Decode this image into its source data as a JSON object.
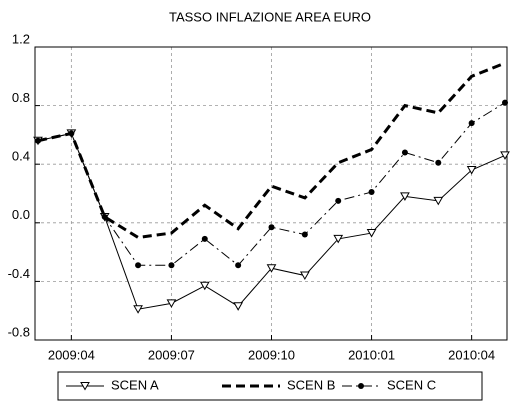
{
  "chart_data": {
    "type": "line",
    "title": "TASSO INFLAZIONE AREA EURO",
    "categories": [
      null,
      "2009:04",
      null,
      null,
      "2009:07",
      null,
      null,
      "2009:10",
      null,
      null,
      "2010:01",
      null,
      null,
      "2010:04",
      null
    ],
    "ylim": [
      -0.8,
      1.2
    ],
    "yticks": [
      -0.8,
      -0.4,
      {
        "value": 0,
        "label": "0.0"
      },
      0.4,
      0.8,
      1.2
    ],
    "grid": true,
    "legend": "bottom",
    "series": [
      {
        "name": "SCEN A",
        "color": "#000000",
        "dash": "solid",
        "marker": "triangle-down",
        "values": [
          0.56,
          0.61,
          0.04,
          -0.59,
          -0.55,
          -0.43,
          -0.57,
          -0.31,
          -0.36,
          -0.11,
          -0.07,
          0.18,
          0.15,
          0.36,
          0.46
        ]
      },
      {
        "name": "SCEN B",
        "color": "#000000",
        "dash": "dashed",
        "marker": "none",
        "values": [
          0.56,
          0.61,
          0.04,
          -0.1,
          -0.07,
          0.12,
          -0.04,
          0.25,
          0.17,
          0.41,
          0.5,
          0.8,
          0.75,
          1.0,
          1.09
        ]
      },
      {
        "name": "SCEN C",
        "color": "#000000",
        "dash": "dashdot",
        "marker": "circle",
        "values": [
          0.56,
          0.61,
          0.04,
          -0.29,
          -0.29,
          -0.11,
          -0.29,
          -0.03,
          -0.08,
          0.15,
          0.21,
          0.48,
          0.41,
          0.68,
          0.82
        ]
      }
    ]
  }
}
